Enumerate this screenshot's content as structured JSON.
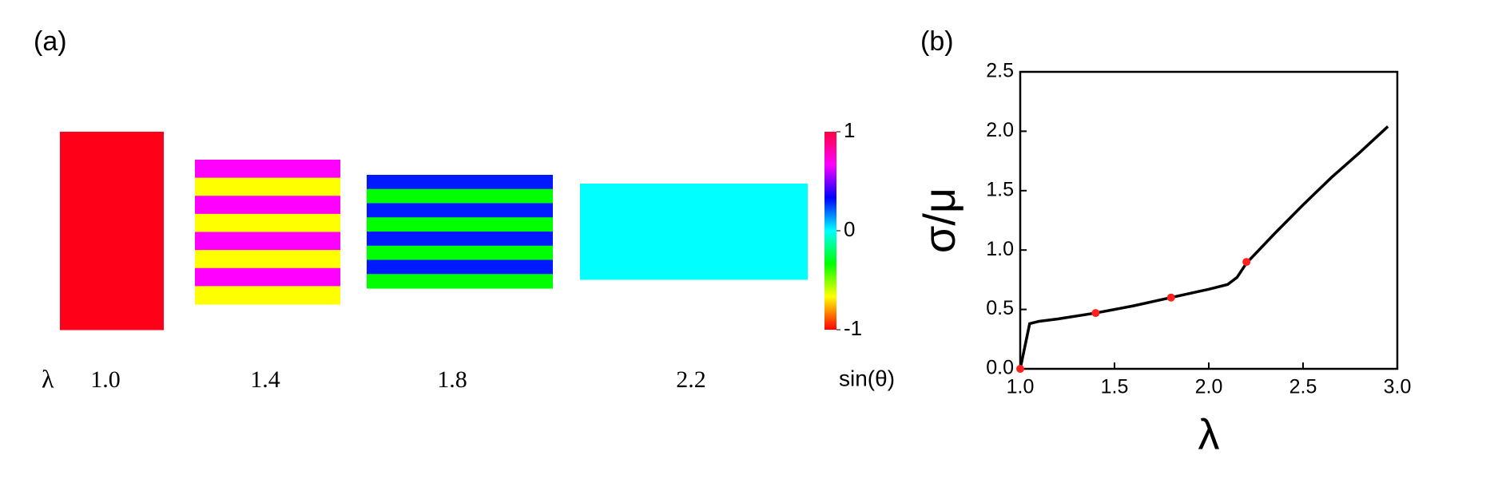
{
  "panel_a": {
    "label": "(a)",
    "lambda_symbol": "λ",
    "samples": [
      {
        "label": "1.0",
        "stripes": [
          "#ff0019"
        ]
      },
      {
        "label": "1.4",
        "stripes": [
          "#ff00ff",
          "#ffff00",
          "#ff00ff",
          "#ffff00",
          "#ff00ff",
          "#ffff00",
          "#ff00ff",
          "#ffff00"
        ]
      },
      {
        "label": "1.8",
        "stripes": [
          "#0019ff",
          "#00ff00",
          "#0019ff",
          "#00ff00",
          "#0019ff",
          "#00ff00",
          "#0019ff",
          "#00ff00"
        ]
      },
      {
        "label": "2.2",
        "stripes": [
          "#00ffff"
        ]
      }
    ],
    "colorbar": {
      "label": "sin(θ)",
      "lim": [
        -1,
        1
      ],
      "ticks": [
        -1,
        0,
        1
      ],
      "colors": [
        "#ff0000",
        "#ffff00",
        "#00ff00",
        "#00ffff",
        "#0000ff",
        "#ff00ff",
        "#ff0040"
      ]
    }
  },
  "chart_data": {
    "type": "line",
    "panel_label": "(b)",
    "x_label": "λ",
    "y_label": "σ/μ",
    "xlim": [
      1.0,
      3.0
    ],
    "ylim": [
      0,
      2.5
    ],
    "xticks": [
      {
        "value": 1.0,
        "label": "1.0"
      },
      {
        "value": 1.5,
        "label": "1.5"
      },
      {
        "value": 2.0,
        "label": "2.0"
      },
      {
        "value": 2.5,
        "label": "2.5"
      },
      {
        "value": 3.0,
        "label": "3.0"
      }
    ],
    "yticks": [
      {
        "value": 0,
        "label": "0.0"
      },
      0.5,
      {
        "value": 1.0,
        "label": "1.0"
      },
      1.5,
      {
        "value": 2.0,
        "label": "2.0"
      },
      2.5
    ],
    "line": {
      "color": "#000000",
      "x": [
        1.0,
        1.05,
        1.1,
        1.2,
        1.4,
        1.6,
        1.8,
        2.0,
        2.1,
        2.15,
        2.2,
        2.35,
        2.5,
        2.65,
        2.8,
        2.95
      ],
      "values": [
        0,
        0.38,
        0.4,
        0.42,
        0.47,
        0.53,
        0.6,
        0.67,
        0.71,
        0.77,
        0.89,
        1.14,
        1.38,
        1.61,
        1.82,
        2.04
      ]
    },
    "points": {
      "color": "#ff2020",
      "x": [
        1.0,
        1.4,
        1.8,
        2.2
      ],
      "values": [
        0,
        0.47,
        0.6,
        0.9
      ]
    }
  }
}
